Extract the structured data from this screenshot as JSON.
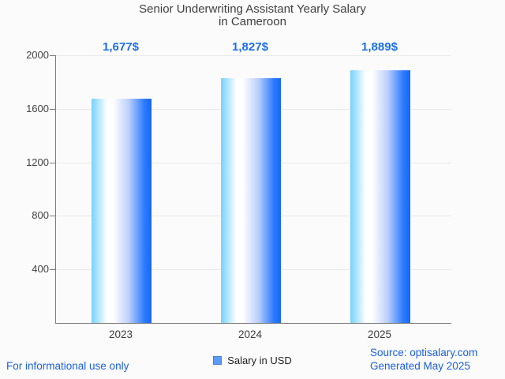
{
  "chart_data": {
    "type": "bar",
    "title": "Senior Underwriting Assistant Yearly Salary\nin Cameroon",
    "categories": [
      "2023",
      "2024",
      "2025"
    ],
    "values": [
      1677,
      1827,
      1889
    ],
    "value_labels": [
      "1,677$",
      "1,827$",
      "1,889$"
    ],
    "series": [
      {
        "name": "Salary in USD",
        "values": [
          1677,
          1827,
          1889
        ]
      }
    ],
    "xlabel": "",
    "ylabel": "",
    "ylim": [
      0,
      2000
    ],
    "yticks": [
      400,
      800,
      1200,
      1600,
      2000
    ],
    "grid": true,
    "legend_position": "bottom",
    "colors": {
      "bar_gradient_left": "#76d2fb",
      "bar_gradient_mid": "#ffffff",
      "bar_gradient_right": "#1467fd",
      "value_label_text": "#1d6fe8",
      "axis_text": "#424242",
      "axis_line": "#7a7a7a",
      "gridline": "#eaeaea",
      "legend_marker_fill": "#5b9bf5",
      "legend_marker_border": "#4b7fd6"
    }
  },
  "legend": {
    "label": "Salary in USD"
  },
  "footer": {
    "left_note": "For informational use only",
    "source": "Source: optisalary.com",
    "generated": "Generated May 2025",
    "link_color": "#1a5fe0"
  }
}
